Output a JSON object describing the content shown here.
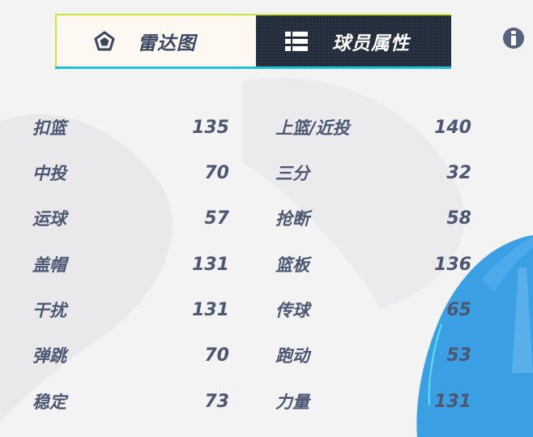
{
  "tabs": [
    {
      "label": "雷达图",
      "icon": "pentagon-icon",
      "active": false
    },
    {
      "label": "球员属性",
      "icon": "list-icon",
      "active": true
    }
  ],
  "info_icon": "info-icon",
  "colors": {
    "text": "#4b5773",
    "active_tab_bg": "#232c3b",
    "inactive_tab_bg": "#fdf8f1",
    "accent_cyan": "#22c3d6",
    "accent_lime": "#c6ec3a",
    "blue_art": "#3b9fe3"
  },
  "attributes_left": [
    {
      "name": "扣篮",
      "value": "135"
    },
    {
      "name": "中投",
      "value": "70"
    },
    {
      "name": "运球",
      "value": "57"
    },
    {
      "name": "盖帽",
      "value": "131"
    },
    {
      "name": "干扰",
      "value": "131"
    },
    {
      "name": "弹跳",
      "value": "70"
    },
    {
      "name": "稳定",
      "value": "73"
    }
  ],
  "attributes_right": [
    {
      "name": "上篮/近投",
      "value": "140"
    },
    {
      "name": "三分",
      "value": "32"
    },
    {
      "name": "抢断",
      "value": "58"
    },
    {
      "name": "篮板",
      "value": "136"
    },
    {
      "name": "传球",
      "value": "65"
    },
    {
      "name": "跑动",
      "value": "53"
    },
    {
      "name": "力量",
      "value": "131"
    }
  ]
}
